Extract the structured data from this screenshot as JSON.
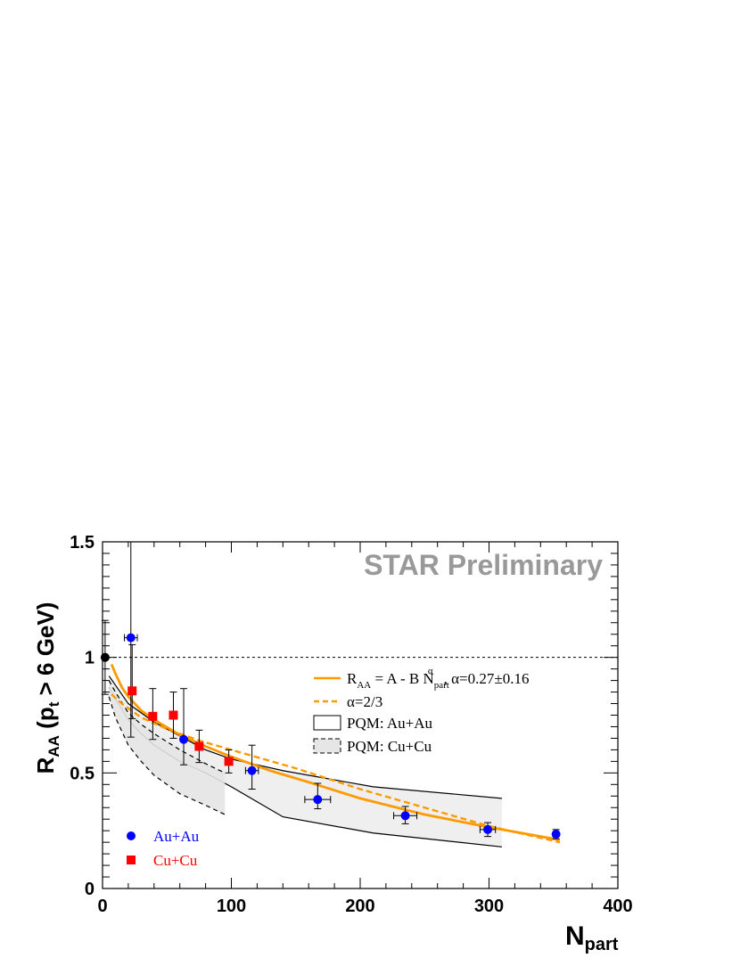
{
  "chart_data": {
    "type": "scatter",
    "watermark": "STAR Preliminary",
    "xlabel": "N",
    "xlabel_sub": "part",
    "ylabel_main": "R",
    "ylabel_sub1": "AA",
    "ylabel_mid": " (p",
    "ylabel_sub2": "t",
    "ylabel_end": " > 6 GeV)",
    "xlim": [
      0,
      400
    ],
    "ylim": [
      0,
      1.5
    ],
    "x_ticks": [
      0,
      100,
      200,
      300,
      400
    ],
    "x_tick_labels": [
      "0",
      "100",
      "200",
      "300",
      "400"
    ],
    "y_ticks": [
      0,
      0.5,
      1,
      1.5
    ],
    "y_tick_labels": [
      "0",
      "0.5",
      "1",
      "1.5"
    ],
    "reference_line_y": 1,
    "colors": {
      "auau": "#0000ff",
      "cucu": "#ff0000",
      "fit": "#ff9900",
      "band": "#efefef",
      "ref": "#000000"
    },
    "series": [
      {
        "name": "Au+Au",
        "marker": "circle",
        "points": [
          {
            "x": 22,
            "y": 1.085,
            "ex": 5,
            "ey_low": 0.43,
            "ey_high": 0.42
          },
          {
            "x": 63,
            "y": 0.645,
            "ex": 0,
            "ey_low": 0.11,
            "ey_high": 0.22
          },
          {
            "x": 116,
            "y": 0.51,
            "ex": 5,
            "ey_low": 0.08,
            "ey_high": 0.11
          },
          {
            "x": 167,
            "y": 0.385,
            "ex": 10,
            "ey_low": 0.04,
            "ey_high": 0.07
          },
          {
            "x": 235,
            "y": 0.315,
            "ex": 9,
            "ey_low": 0.035,
            "ey_high": 0.04
          },
          {
            "x": 299,
            "y": 0.255,
            "ex": 6,
            "ey_low": 0.03,
            "ey_high": 0.03
          },
          {
            "x": 352,
            "y": 0.235,
            "ex": 0,
            "ey_low": 0.02,
            "ey_high": 0.02
          }
        ]
      },
      {
        "name": "Cu+Cu",
        "marker": "square",
        "points": [
          {
            "x": 23,
            "y": 0.855,
            "ey_low": 0.12,
            "ey_high": 0.2
          },
          {
            "x": 39,
            "y": 0.745,
            "ey_low": 0.1,
            "ey_high": 0.12
          },
          {
            "x": 55,
            "y": 0.75,
            "ey_low": 0.1,
            "ey_high": 0.1
          },
          {
            "x": 75,
            "y": 0.615,
            "ey_low": 0.07,
            "ey_high": 0.07
          },
          {
            "x": 98,
            "y": 0.55,
            "ey_low": 0.05,
            "ey_high": 0.05
          }
        ]
      },
      {
        "name": "reference",
        "marker": "circle",
        "points": [
          {
            "x": 2,
            "y": 1.0,
            "ey_low": 0.16,
            "ey_high": 0.16
          }
        ]
      }
    ],
    "curves": [
      {
        "name": "fit",
        "style": "solid",
        "x": [
          7,
          10,
          15,
          20,
          30,
          40,
          60,
          80,
          100,
          130,
          160,
          200,
          250,
          300,
          355
        ],
        "y": [
          0.97,
          0.93,
          0.87,
          0.83,
          0.77,
          0.73,
          0.665,
          0.615,
          0.57,
          0.51,
          0.46,
          0.39,
          0.32,
          0.265,
          0.21
        ]
      },
      {
        "name": "alpha-2-3",
        "style": "dashed",
        "x": [
          7,
          15,
          30,
          50,
          75,
          100,
          150,
          200,
          250,
          300,
          355
        ],
        "y": [
          0.84,
          0.8,
          0.74,
          0.69,
          0.64,
          0.6,
          0.52,
          0.43,
          0.35,
          0.27,
          0.2
        ]
      }
    ],
    "bands": [
      {
        "name": "PQM: Au+Au",
        "style": "solid",
        "x": [
          5,
          10,
          20,
          30,
          40,
          60,
          80,
          100,
          140,
          210,
          310
        ],
        "upper": [
          0.92,
          0.88,
          0.8,
          0.76,
          0.72,
          0.66,
          0.6,
          0.56,
          0.51,
          0.44,
          0.39
        ],
        "lower": [
          0.87,
          0.82,
          0.73,
          0.67,
          0.62,
          0.55,
          0.5,
          0.44,
          0.31,
          0.24,
          0.18
        ]
      },
      {
        "name": "PQM: Cu+Cu",
        "style": "dashed",
        "x": [
          5,
          10,
          20,
          30,
          40,
          60,
          80,
          95
        ],
        "upper": [
          0.9,
          0.85,
          0.76,
          0.71,
          0.67,
          0.6,
          0.54,
          0.5
        ],
        "lower": [
          0.83,
          0.74,
          0.62,
          0.55,
          0.49,
          0.41,
          0.36,
          0.32
        ]
      }
    ],
    "legend_top": {
      "placement": "top-right",
      "entries": [
        {
          "name": "fit",
          "parts": [
            "R",
            "AA",
            " = A - B N",
            "part",
            "α",
            ", α=0.27±0.16"
          ]
        },
        {
          "name": "alpha-2-3",
          "label": "α=2/3"
        },
        {
          "name": "pqm-auau",
          "label": "PQM: Au+Au"
        },
        {
          "name": "pqm-cucu",
          "label": "PQM: Cu+Cu"
        }
      ]
    },
    "legend_bottom": {
      "placement": "bottom-left",
      "entries": [
        {
          "name": "auau",
          "label": "Au+Au"
        },
        {
          "name": "cucu",
          "label": "Cu+Cu"
        }
      ]
    }
  }
}
